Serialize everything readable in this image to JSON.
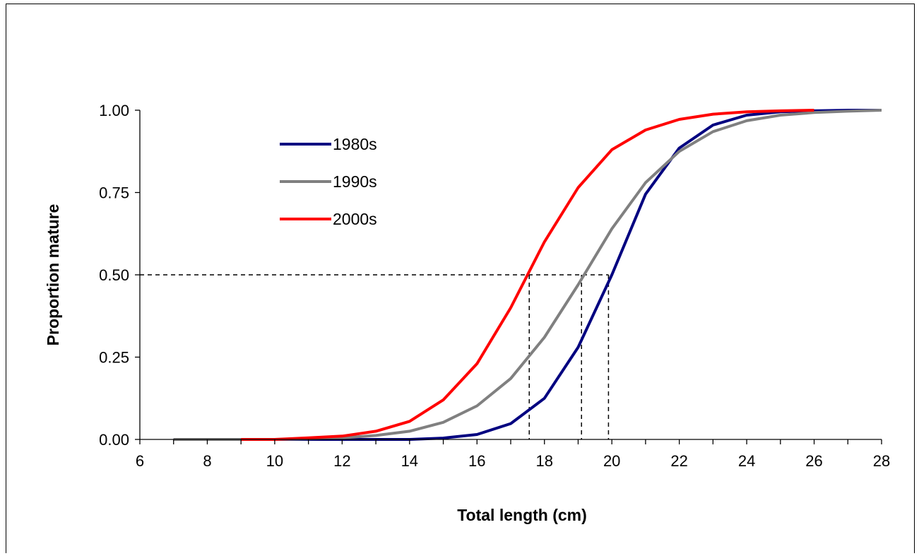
{
  "chart_data": {
    "type": "line",
    "title": "",
    "xlabel": "Total length (cm)",
    "ylabel": "Proportion mature",
    "xlim": [
      6,
      28
    ],
    "ylim": [
      0,
      1
    ],
    "xticks": [
      6,
      8,
      10,
      12,
      14,
      16,
      18,
      20,
      22,
      24,
      26,
      28
    ],
    "yticks": [
      0,
      0.25,
      0.5,
      0.75,
      1
    ],
    "ytick_labels": [
      "0.00",
      "0.25",
      "0.50",
      "0.75",
      "1.00"
    ],
    "grid": false,
    "legend_position": "top-left",
    "series": [
      {
        "name": "1980s",
        "color": "#000080",
        "x": [
          7,
          8,
          9,
          10,
          11,
          12,
          13,
          14,
          15,
          16,
          17,
          18,
          19,
          20,
          21,
          22,
          23,
          24,
          25,
          26,
          27,
          28
        ],
        "y": [
          0.0,
          0.0,
          0.0,
          0.0,
          0.0,
          0.0,
          0.0,
          0.0,
          0.004,
          0.015,
          0.048,
          0.125,
          0.28,
          0.5,
          0.745,
          0.885,
          0.955,
          0.985,
          0.995,
          0.998,
          1.0,
          1.0
        ]
      },
      {
        "name": "1990s",
        "color": "#808080",
        "x": [
          7,
          8,
          9,
          10,
          11,
          12,
          13,
          14,
          15,
          16,
          17,
          18,
          19,
          20,
          21,
          22,
          23,
          24,
          25,
          26,
          27,
          28
        ],
        "y": [
          0.0,
          0.0,
          0.0,
          0.0,
          0.002,
          0.005,
          0.012,
          0.025,
          0.052,
          0.102,
          0.185,
          0.31,
          0.47,
          0.64,
          0.78,
          0.875,
          0.935,
          0.968,
          0.985,
          0.993,
          0.997,
          1.0
        ]
      },
      {
        "name": "2000s",
        "color": "#ff0000",
        "x": [
          9,
          10,
          11,
          12,
          13,
          14,
          15,
          16,
          17,
          18,
          19,
          20,
          21,
          22,
          23,
          24,
          25,
          26
        ],
        "y": [
          0.0,
          0.0,
          0.005,
          0.01,
          0.025,
          0.055,
          0.12,
          0.23,
          0.4,
          0.6,
          0.765,
          0.88,
          0.94,
          0.972,
          0.988,
          0.995,
          0.998,
          1.0
        ]
      }
    ],
    "reference_lines": {
      "y": 0.5,
      "x_crossings": [
        17.55,
        19.1,
        19.9
      ],
      "style": "dashed"
    }
  }
}
